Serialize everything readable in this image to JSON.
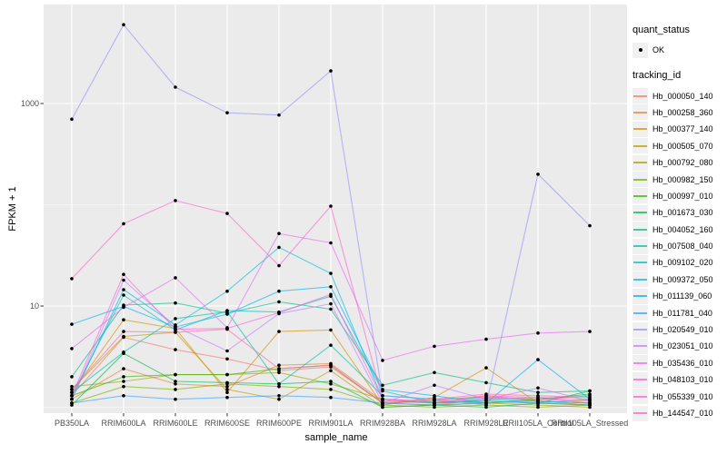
{
  "figure": {
    "background": "#FFFFFF",
    "panel_background": "#EBEBEB",
    "grid_color": "#FFFFFF",
    "tick_color": "#333333",
    "axis_text_color": "#4D4D4D",
    "point_color": "#000000"
  },
  "legend": {
    "quant_status_title": "quant_status",
    "quant_status_items": [
      {
        "label": "OK",
        "symbol": "point",
        "color": "#000000"
      }
    ],
    "tracking_id_title": "tracking_id"
  },
  "chart_data": {
    "type": "line",
    "title": "",
    "xlabel": "sample_name",
    "ylabel": "FPKM + 1",
    "y_scale": "log10",
    "grid": true,
    "legend_position": "right",
    "ylim": [
      0.87,
      8300
    ],
    "y_major_ticks": [
      {
        "label": "10",
        "value": 10
      },
      {
        "label": "1000",
        "value": 1000
      }
    ],
    "y_minor_ticks": [
      1,
      100
    ],
    "quant_status": "OK",
    "categories": [
      "PB350LA",
      "RRIM600LA",
      "RRIM600LE",
      "RRIM600SE",
      "RRIM600PE",
      "RRIM901LA",
      "RRIM928BA",
      "RRIM928LA",
      "RRIM928LE",
      "RRII105LA_Control",
      "RRII105LA_Stressed"
    ],
    "series": [
      {
        "tracking_id": "Hb_000050_140",
        "color": "#F8766D",
        "values": [
          1.3,
          4.9,
          3.7,
          3.0,
          2.3,
          2.5,
          1.1,
          1.05,
          1.2,
          1.25,
          1.1
        ]
      },
      {
        "tracking_id": "Hb_000258_360",
        "color": "#EA8331",
        "values": [
          1.2,
          2.4,
          1.7,
          1.6,
          2.6,
          2.7,
          1.15,
          1.1,
          1.3,
          1.15,
          1.05
        ]
      },
      {
        "tracking_id": "Hb_000377_140",
        "color": "#D89000",
        "values": [
          1.4,
          7.3,
          6.0,
          1.4,
          5.6,
          5.8,
          1.05,
          1.25,
          2.45,
          1.1,
          1.05
        ]
      },
      {
        "tracking_id": "Hb_000505_070",
        "color": "#C09B00",
        "values": [
          1.5,
          5.0,
          5.5,
          1.5,
          1.2,
          2.3,
          1.0,
          1.05,
          1.1,
          1.05,
          1.0
        ]
      },
      {
        "tracking_id": "Hb_000792_080",
        "color": "#A3A500",
        "values": [
          1.6,
          1.8,
          2.1,
          2.1,
          2.2,
          1.7,
          1.2,
          1.1,
          1.15,
          1.1,
          1.2
        ]
      },
      {
        "tracking_id": "Hb_000982_150",
        "color": "#7CAE00",
        "values": [
          1.1,
          1.6,
          1.5,
          1.7,
          1.6,
          1.5,
          1.05,
          1.0,
          1.05,
          1.0,
          1.05
        ]
      },
      {
        "tracking_id": "Hb_000997_010",
        "color": "#39B600",
        "values": [
          1.3,
          2.0,
          2.1,
          2.1,
          2.4,
          2.6,
          1.1,
          1.15,
          1.1,
          1.2,
          1.35
        ]
      },
      {
        "tracking_id": "Hb_001673_030",
        "color": "#00BB4E",
        "values": [
          1.05,
          3.4,
          1.8,
          1.75,
          1.7,
          1.8,
          1.0,
          1.05,
          1.0,
          1.1,
          1.45
        ]
      },
      {
        "tracking_id": "Hb_004052_160",
        "color": "#00C087",
        "values": [
          2.0,
          10.2,
          10.7,
          8.5,
          11,
          9.3,
          1.65,
          2.2,
          1.75,
          1.4,
          1.45
        ]
      },
      {
        "tracking_id": "Hb_007508_040",
        "color": "#00C1A3",
        "values": [
          1.4,
          3.5,
          7.5,
          8.8,
          1.7,
          4.1,
          1.3,
          1.2,
          1.25,
          1.2,
          1.3
        ]
      },
      {
        "tracking_id": "Hb_009102_020",
        "color": "#00BFC4",
        "values": [
          1.3,
          12.8,
          5.8,
          9.0,
          8.7,
          12.5,
          1.45,
          1.1,
          1.2,
          1.15,
          1.1
        ]
      },
      {
        "tracking_id": "Hb_009372_050",
        "color": "#00BAE0",
        "values": [
          1.2,
          14.5,
          6.5,
          14,
          38,
          21,
          1.2,
          1.1,
          1.15,
          1.1,
          1.05
        ]
      },
      {
        "tracking_id": "Hb_011139_060",
        "color": "#00B0F6",
        "values": [
          6.6,
          9.9,
          6.2,
          8.3,
          14,
          15.5,
          1.5,
          1.3,
          1.1,
          2.95,
          1.2
        ]
      },
      {
        "tracking_id": "Hb_011781_040",
        "color": "#35A2FF",
        "values": [
          1.1,
          1.3,
          1.2,
          1.25,
          1.3,
          1.25,
          1.1,
          1.05,
          1.1,
          1.15,
          1.1
        ]
      },
      {
        "tracking_id": "Hb_020549_010",
        "color": "#9590FF",
        "values": [
          700,
          6000,
          1450,
          810,
          770,
          2100,
          1.3,
          1.2,
          1.05,
          200,
          62
        ]
      },
      {
        "tracking_id": "Hb_023051_010",
        "color": "#C77CFF",
        "values": [
          1.2,
          18,
          6.3,
          3.6,
          8.4,
          10.5,
          1.1,
          1.65,
          1.2,
          1.55,
          1.15
        ]
      },
      {
        "tracking_id": "Hb_035436_010",
        "color": "#E76BF3",
        "values": [
          3.8,
          9.7,
          19,
          6.1,
          52,
          42,
          2.9,
          4.0,
          4.7,
          5.4,
          5.6
        ]
      },
      {
        "tracking_id": "Hb_048103_010",
        "color": "#FA62DB",
        "values": [
          1.3,
          20.5,
          5.9,
          6.0,
          8.6,
          13,
          1.2,
          1.1,
          1.25,
          1.2,
          1.15
        ]
      },
      {
        "tracking_id": "Hb_055339_010",
        "color": "#FF61C9",
        "values": [
          18.6,
          65,
          110,
          82,
          25,
          97,
          1.2,
          1.15,
          1.3,
          1.25,
          1.2
        ]
      },
      {
        "tracking_id": "Hb_144547_010",
        "color": "#FF65AE",
        "values": [
          1.5,
          5.6,
          5.5,
          5.9,
          2.4,
          2.6,
          1.1,
          1.2,
          1.35,
          1.3,
          1.25
        ]
      }
    ]
  }
}
